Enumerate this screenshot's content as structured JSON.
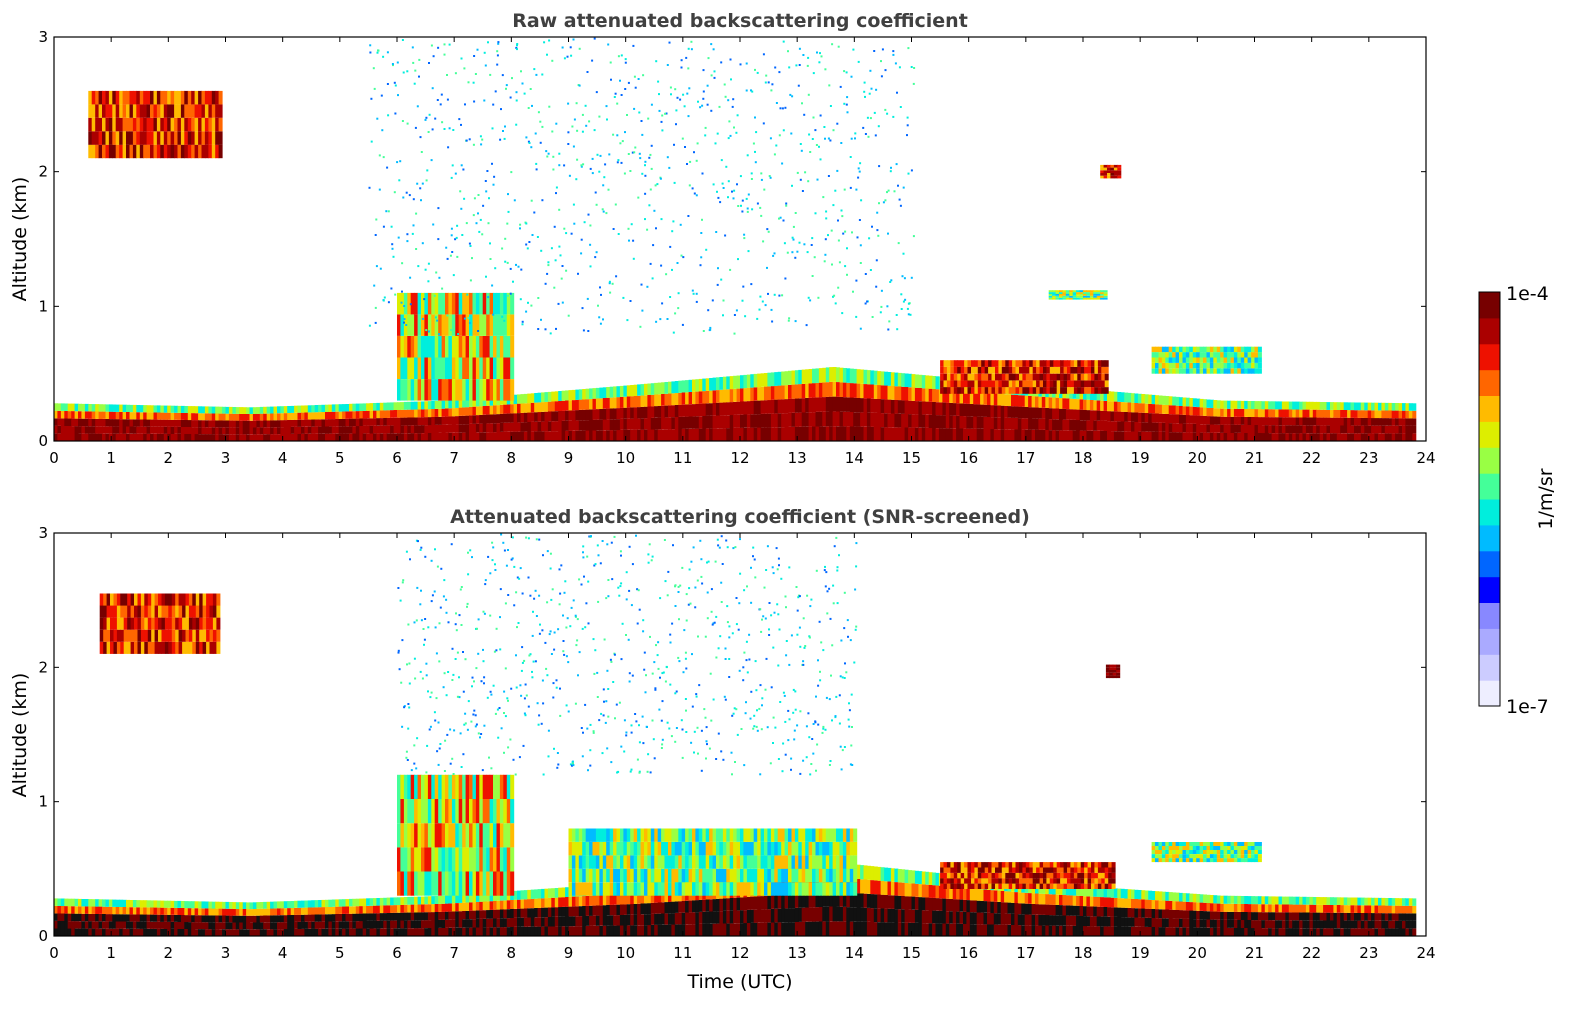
{
  "chart_data": [
    {
      "type": "heatmap",
      "id": "raw",
      "title": "Raw attenuated backscattering coefficient",
      "xlabel": "",
      "ylabel": "Altitude (km)",
      "xlim": [
        0,
        24
      ],
      "ylim": [
        0,
        3
      ],
      "xticks": [
        0,
        1,
        2,
        3,
        4,
        5,
        6,
        7,
        8,
        9,
        10,
        11,
        12,
        13,
        14,
        15,
        16,
        17,
        18,
        19,
        20,
        21,
        22,
        23,
        24
      ],
      "yticks": [
        0,
        1,
        2,
        3
      ],
      "features": [
        {
          "name": "boundary-layer",
          "t": [
            0,
            23.8
          ],
          "top_km": [
            0.28,
            0.25,
            0.3,
            0.42,
            0.55,
            0.42,
            0.3,
            0.28
          ],
          "intensity": "high"
        },
        {
          "name": "elevated-layer-6-8h",
          "t": [
            6.0,
            8.0
          ],
          "alt_km": [
            0.3,
            1.1
          ],
          "intensity": "medium-high"
        },
        {
          "name": "cloud-17h",
          "t": [
            15.5,
            18.4
          ],
          "alt_km": [
            0.35,
            0.6
          ],
          "intensity": "high"
        },
        {
          "name": "cloud-19h",
          "t": [
            19.2,
            21.1
          ],
          "alt_km": [
            0.5,
            0.7
          ],
          "intensity": "medium"
        },
        {
          "name": "cloud-2km",
          "t": [
            18.3,
            18.6
          ],
          "alt_km": [
            1.95,
            2.05
          ],
          "intensity": "high"
        },
        {
          "name": "cloud-1km",
          "t": [
            17.4,
            18.4
          ],
          "alt_km": [
            1.05,
            1.12
          ],
          "intensity": "medium"
        },
        {
          "name": "cirrus-early",
          "t": [
            0.6,
            2.9
          ],
          "alt_km": [
            2.1,
            2.6
          ],
          "intensity": "high"
        },
        {
          "name": "noise-region",
          "t": [
            5.5,
            15.0
          ],
          "alt_km": [
            0.8,
            3.0
          ],
          "intensity": "low"
        }
      ]
    },
    {
      "type": "heatmap",
      "id": "snr",
      "title": "Attenuated backscattering coefficient (SNR-screened)",
      "xlabel": "Time (UTC)",
      "ylabel": "Altitude (km)",
      "xlim": [
        0,
        24
      ],
      "ylim": [
        0,
        3
      ],
      "xticks": [
        0,
        1,
        2,
        3,
        4,
        5,
        6,
        7,
        8,
        9,
        10,
        11,
        12,
        13,
        14,
        15,
        16,
        17,
        18,
        19,
        20,
        21,
        22,
        23,
        24
      ],
      "yticks": [
        0,
        1,
        2,
        3
      ],
      "features": [
        {
          "name": "boundary-layer",
          "t": [
            0,
            23.8
          ],
          "top_km": [
            0.28,
            0.25,
            0.3,
            0.4,
            0.55,
            0.4,
            0.3,
            0.28
          ],
          "intensity": "saturated"
        },
        {
          "name": "elevated-layer-6-8h",
          "t": [
            6.0,
            8.0
          ],
          "alt_km": [
            0.3,
            1.2
          ],
          "intensity": "medium-high"
        },
        {
          "name": "aerosol-9-14h",
          "t": [
            9.0,
            14.0
          ],
          "alt_km": [
            0.3,
            0.8
          ],
          "intensity": "medium"
        },
        {
          "name": "cloud-17h",
          "t": [
            15.5,
            18.5
          ],
          "alt_km": [
            0.35,
            0.55
          ],
          "intensity": "high"
        },
        {
          "name": "cloud-20h",
          "t": [
            19.2,
            21.1
          ],
          "alt_km": [
            0.55,
            0.7
          ],
          "intensity": "medium"
        },
        {
          "name": "cloud-2km",
          "t": [
            18.4,
            18.6
          ],
          "alt_km": [
            1.92,
            2.02
          ],
          "intensity": "saturated"
        },
        {
          "name": "cirrus-early",
          "t": [
            0.8,
            2.9
          ],
          "alt_km": [
            2.1,
            2.55
          ],
          "intensity": "high"
        },
        {
          "name": "noise-region",
          "t": [
            6.0,
            14.0
          ],
          "alt_km": [
            1.2,
            3.0
          ],
          "intensity": "low"
        }
      ]
    }
  ],
  "colorbar": {
    "max_label": "1e-4",
    "min_label": "1e-7",
    "unit_label": "1/m/sr",
    "colors": [
      "#eeeeff",
      "#ccccff",
      "#aaaaff",
      "#8888ff",
      "#0000ff",
      "#0066ff",
      "#00bbff",
      "#00eedd",
      "#44ff99",
      "#99ff44",
      "#ddee00",
      "#ffbb00",
      "#ff6600",
      "#ee1100",
      "#aa0000",
      "#770000"
    ]
  }
}
